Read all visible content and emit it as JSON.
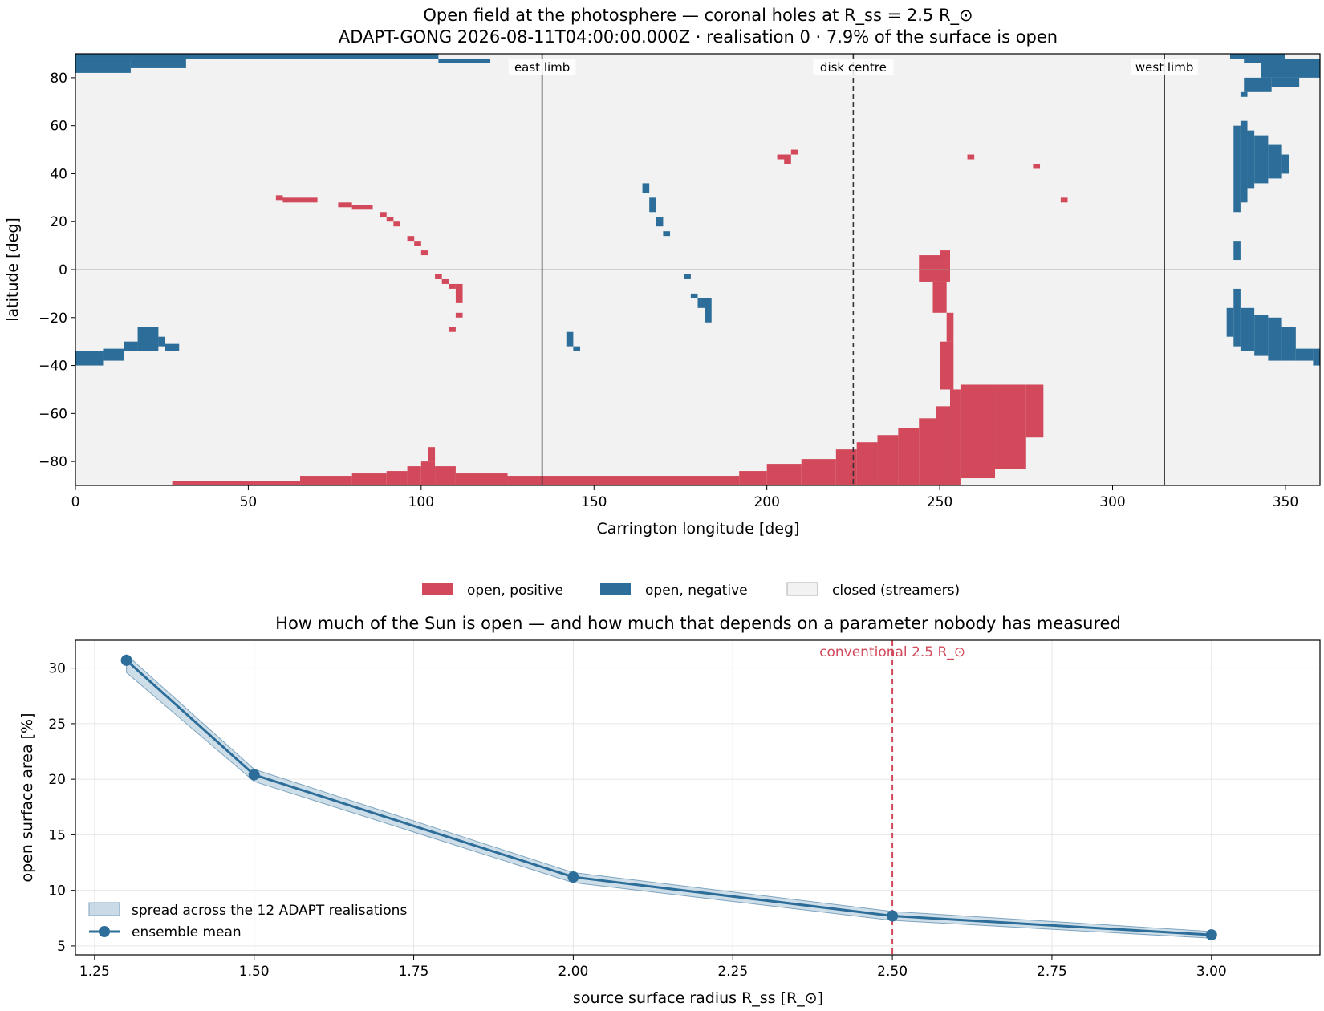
{
  "chart_data": [
    {
      "type": "heatmap",
      "title_lines": [
        "Open field at the photosphere — coronal holes at R_ss = 2.5 R_⊙",
        "ADAPT-GONG 2026-08-11T04:00:00.000Z · realisation 0   ·   7.9% of the surface is open"
      ],
      "xlabel": "Carrington longitude [deg]",
      "ylabel": "latitude [deg]",
      "xlim": [
        0,
        360
      ],
      "ylim": [
        -90,
        90
      ],
      "xticks": [
        0,
        50,
        100,
        150,
        200,
        250,
        300,
        350
      ],
      "yticks": [
        -80,
        -60,
        -40,
        -20,
        0,
        20,
        40,
        60,
        80
      ],
      "open_fraction_percent": 7.9,
      "categories": [
        "open, positive",
        "open, negative",
        "closed (streamers)"
      ],
      "colors": {
        "open_positive": "#d1495b",
        "open_negative": "#2c6e99",
        "closed": "#f2f2f2"
      },
      "reference_lines": [
        {
          "label": "east limb",
          "lon": 135,
          "style": "solid"
        },
        {
          "label": "disk centre",
          "lon": 225,
          "style": "dashed"
        },
        {
          "label": "west limb",
          "lon": 315,
          "style": "solid"
        }
      ],
      "open_positive_regions": [
        {
          "lon": [
            28,
            65
          ],
          "lat": [
            -90,
            -88
          ]
        },
        {
          "lon": [
            65,
            80
          ],
          "lat": [
            -90,
            -86
          ]
        },
        {
          "lon": [
            80,
            90
          ],
          "lat": [
            -90,
            -85
          ]
        },
        {
          "lon": [
            90,
            96
          ],
          "lat": [
            -90,
            -84
          ]
        },
        {
          "lon": [
            96,
            100
          ],
          "lat": [
            -90,
            -82
          ]
        },
        {
          "lon": [
            100,
            104
          ],
          "lat": [
            -90,
            -80
          ]
        },
        {
          "lon": [
            102,
            104
          ],
          "lat": [
            -80,
            -74
          ]
        },
        {
          "lon": [
            104,
            110
          ],
          "lat": [
            -90,
            -82
          ]
        },
        {
          "lon": [
            110,
            125
          ],
          "lat": [
            -90,
            -85
          ]
        },
        {
          "lon": [
            125,
            192
          ],
          "lat": [
            -90,
            -86
          ]
        },
        {
          "lon": [
            192,
            200
          ],
          "lat": [
            -90,
            -84
          ]
        },
        {
          "lon": [
            200,
            210
          ],
          "lat": [
            -90,
            -81
          ]
        },
        {
          "lon": [
            210,
            220
          ],
          "lat": [
            -90,
            -79
          ]
        },
        {
          "lon": [
            220,
            226
          ],
          "lat": [
            -90,
            -75
          ]
        },
        {
          "lon": [
            226,
            232
          ],
          "lat": [
            -90,
            -72
          ]
        },
        {
          "lon": [
            232,
            238
          ],
          "lat": [
            -90,
            -69
          ]
        },
        {
          "lon": [
            238,
            244
          ],
          "lat": [
            -90,
            -66
          ]
        },
        {
          "lon": [
            244,
            249
          ],
          "lat": [
            -90,
            -62
          ]
        },
        {
          "lon": [
            249,
            253
          ],
          "lat": [
            -90,
            -57
          ]
        },
        {
          "lon": [
            253,
            256
          ],
          "lat": [
            -90,
            -50
          ]
        },
        {
          "lon": [
            256,
            266
          ],
          "lat": [
            -87,
            -48
          ]
        },
        {
          "lon": [
            266,
            275
          ],
          "lat": [
            -83,
            -48
          ]
        },
        {
          "lon": [
            275,
            280
          ],
          "lat": [
            -70,
            -48
          ]
        },
        {
          "lon": [
            250,
            254
          ],
          "lat": [
            -50,
            -30
          ]
        },
        {
          "lon": [
            252,
            254
          ],
          "lat": [
            -30,
            -18
          ]
        },
        {
          "lon": [
            248,
            252
          ],
          "lat": [
            -18,
            -5
          ]
        },
        {
          "lon": [
            244,
            253
          ],
          "lat": [
            -5,
            3
          ]
        },
        {
          "lon": [
            244,
            250
          ],
          "lat": [
            3,
            6
          ]
        },
        {
          "lon": [
            250,
            253
          ],
          "lat": [
            3,
            8
          ]
        },
        {
          "lon": [
            58,
            60
          ],
          "lat": [
            29,
            31
          ]
        },
        {
          "lon": [
            60,
            70
          ],
          "lat": [
            28,
            30
          ]
        },
        {
          "lon": [
            76,
            80
          ],
          "lat": [
            26,
            28
          ]
        },
        {
          "lon": [
            80,
            86
          ],
          "lat": [
            25,
            27
          ]
        },
        {
          "lon": [
            88,
            90
          ],
          "lat": [
            22,
            24
          ]
        },
        {
          "lon": [
            90,
            92
          ],
          "lat": [
            20,
            22
          ]
        },
        {
          "lon": [
            92,
            94
          ],
          "lat": [
            18,
            20
          ]
        },
        {
          "lon": [
            96,
            98
          ],
          "lat": [
            12,
            14
          ]
        },
        {
          "lon": [
            98,
            100
          ],
          "lat": [
            10,
            12
          ]
        },
        {
          "lon": [
            100,
            102
          ],
          "lat": [
            6,
            8
          ]
        },
        {
          "lon": [
            104,
            106
          ],
          "lat": [
            -4,
            -2
          ]
        },
        {
          "lon": [
            106,
            108
          ],
          "lat": [
            -6,
            -4
          ]
        },
        {
          "lon": [
            108,
            110
          ],
          "lat": [
            -8,
            -6
          ]
        },
        {
          "lon": [
            110,
            112
          ],
          "lat": [
            -14,
            -6
          ]
        },
        {
          "lon": [
            110,
            112
          ],
          "lat": [
            -20,
            -18
          ]
        },
        {
          "lon": [
            108,
            110
          ],
          "lat": [
            -26,
            -24
          ]
        },
        {
          "lon": [
            203,
            207
          ],
          "lat": [
            46,
            48
          ]
        },
        {
          "lon": [
            205,
            207
          ],
          "lat": [
            44,
            46
          ]
        },
        {
          "lon": [
            207,
            209
          ],
          "lat": [
            48,
            50
          ]
        },
        {
          "lon": [
            258,
            260
          ],
          "lat": [
            46,
            48
          ]
        },
        {
          "lon": [
            277,
            279
          ],
          "lat": [
            42,
            44
          ]
        },
        {
          "lon": [
            285,
            287
          ],
          "lat": [
            28,
            30
          ]
        }
      ],
      "open_negative_regions": [
        {
          "lon": [
            0,
            105
          ],
          "lat": [
            88,
            90
          ]
        },
        {
          "lon": [
            105,
            120
          ],
          "lat": [
            86,
            88
          ]
        },
        {
          "lon": [
            0,
            16
          ],
          "lat": [
            82,
            88
          ]
        },
        {
          "lon": [
            16,
            32
          ],
          "lat": [
            84,
            88
          ]
        },
        {
          "lon": [
            0,
            8
          ],
          "lat": [
            -40,
            -34
          ]
        },
        {
          "lon": [
            8,
            14
          ],
          "lat": [
            -38,
            -33
          ]
        },
        {
          "lon": [
            14,
            18
          ],
          "lat": [
            -34,
            -30
          ]
        },
        {
          "lon": [
            18,
            24
          ],
          "lat": [
            -34,
            -24
          ]
        },
        {
          "lon": [
            24,
            26
          ],
          "lat": [
            -32,
            -28
          ]
        },
        {
          "lon": [
            26,
            30
          ],
          "lat": [
            -34,
            -31
          ]
        },
        {
          "lon": [
            142,
            144
          ],
          "lat": [
            -32,
            -26
          ]
        },
        {
          "lon": [
            144,
            146
          ],
          "lat": [
            -34,
            -32
          ]
        },
        {
          "lon": [
            164,
            166
          ],
          "lat": [
            32,
            36
          ]
        },
        {
          "lon": [
            166,
            168
          ],
          "lat": [
            24,
            30
          ]
        },
        {
          "lon": [
            168,
            170
          ],
          "lat": [
            18,
            22
          ]
        },
        {
          "lon": [
            170,
            172
          ],
          "lat": [
            14,
            16
          ]
        },
        {
          "lon": [
            176,
            178
          ],
          "lat": [
            -4,
            -2
          ]
        },
        {
          "lon": [
            178,
            180
          ],
          "lat": [
            -12,
            -10
          ]
        },
        {
          "lon": [
            180,
            182
          ],
          "lat": [
            -16,
            -12
          ]
        },
        {
          "lon": [
            182,
            184
          ],
          "lat": [
            -22,
            -12
          ]
        },
        {
          "lon": [
            334,
            350
          ],
          "lat": [
            88,
            90
          ]
        },
        {
          "lon": [
            338,
            350
          ],
          "lat": [
            86,
            88
          ]
        },
        {
          "lon": [
            343,
            360
          ],
          "lat": [
            80,
            88
          ]
        },
        {
          "lon": [
            346,
            354
          ],
          "lat": [
            76,
            80
          ]
        },
        {
          "lon": [
            338,
            346
          ],
          "lat": [
            74,
            80
          ]
        },
        {
          "lon": [
            337,
            339
          ],
          "lat": [
            72,
            74
          ]
        },
        {
          "lon": [
            335,
            337
          ],
          "lat": [
            24,
            60
          ]
        },
        {
          "lon": [
            337,
            339
          ],
          "lat": [
            28,
            62
          ]
        },
        {
          "lon": [
            339,
            341
          ],
          "lat": [
            34,
            58
          ]
        },
        {
          "lon": [
            341,
            345
          ],
          "lat": [
            36,
            56
          ]
        },
        {
          "lon": [
            345,
            349
          ],
          "lat": [
            38,
            52
          ]
        },
        {
          "lon": [
            349,
            351
          ],
          "lat": [
            40,
            48
          ]
        },
        {
          "lon": [
            335,
            337
          ],
          "lat": [
            4,
            12
          ]
        },
        {
          "lon": [
            333,
            335
          ],
          "lat": [
            -28,
            -16
          ]
        },
        {
          "lon": [
            335,
            337
          ],
          "lat": [
            -32,
            -8
          ]
        },
        {
          "lon": [
            337,
            341
          ],
          "lat": [
            -34,
            -16
          ]
        },
        {
          "lon": [
            341,
            345
          ],
          "lat": [
            -36,
            -19
          ]
        },
        {
          "lon": [
            345,
            349
          ],
          "lat": [
            -38,
            -20
          ]
        },
        {
          "lon": [
            349,
            353
          ],
          "lat": [
            -38,
            -24
          ]
        },
        {
          "lon": [
            353,
            358
          ],
          "lat": [
            -38,
            -33
          ]
        },
        {
          "lon": [
            358,
            360
          ],
          "lat": [
            -40,
            -33
          ]
        }
      ]
    },
    {
      "type": "line",
      "title": "How much of the Sun is open — and how much that depends on a parameter nobody has measured",
      "xlabel": "source surface radius R_ss [R_⊙]",
      "ylabel": "open surface area [%]",
      "xlim": [
        1.22,
        3.17
      ],
      "ylim": [
        4.2,
        32.5
      ],
      "xticks": [
        "1.25",
        "1.50",
        "1.75",
        "2.00",
        "2.25",
        "2.50",
        "2.75",
        "3.00"
      ],
      "yticks": [
        "5",
        "10",
        "15",
        "20",
        "25",
        "30"
      ],
      "grid": true,
      "legend_placement": "lower-left",
      "x": [
        1.3,
        1.5,
        2.0,
        2.5,
        3.0
      ],
      "series": [
        {
          "name": "ensemble mean",
          "values": [
            30.7,
            20.4,
            11.2,
            7.7,
            6.0
          ],
          "color": "#2c6e99"
        }
      ],
      "band": {
        "name": "spread across the 12 ADAPT realisations",
        "lower": [
          29.6,
          19.8,
          10.7,
          7.3,
          5.7
        ],
        "upper": [
          31.2,
          20.9,
          11.6,
          8.1,
          6.3
        ],
        "color": "#a6c2d7"
      },
      "reference_line": {
        "x": 2.5,
        "label": "conventional 2.5 R_⊙",
        "color": "#d1495b"
      }
    }
  ]
}
